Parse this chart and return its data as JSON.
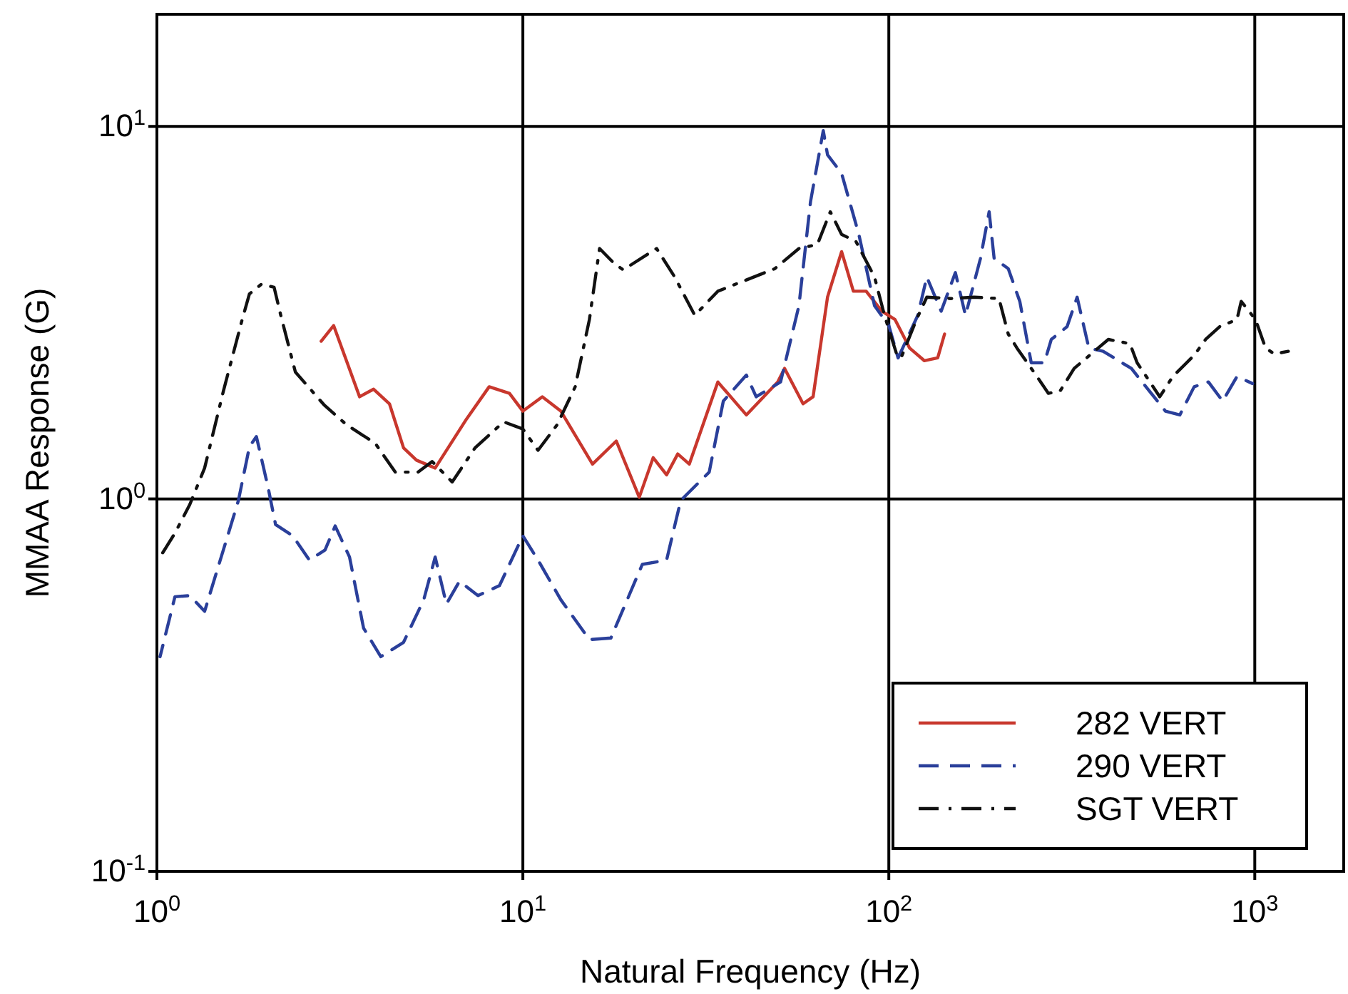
{
  "chart_data": {
    "type": "line",
    "xlabel": "Natural Frequency (Hz)",
    "ylabel": "MMAA Response (G)",
    "log": "xy",
    "grid": true,
    "legend": "bottom right",
    "xlim": [
      1,
      1750
    ],
    "ylim": [
      0.1,
      20
    ],
    "xticks": [
      {
        "value": 1,
        "label": "10$^{0}$"
      },
      {
        "value": 10,
        "label": "10$^{1}$"
      },
      {
        "value": 100,
        "label": "10$^{2}$"
      },
      {
        "value": 1000,
        "label": "10$^{3}$"
      }
    ],
    "yticks": [
      {
        "value": 0.1,
        "label": "10$^{-1}$"
      },
      {
        "value": 1,
        "label": "10$^{0}$"
      },
      {
        "value": 10,
        "label": "10$^{1}$"
      }
    ],
    "series": [
      {
        "name": "282 VERT",
        "color": "#c8372d",
        "line_style": "solid",
        "x": [
          2.81,
          3.04,
          3.58,
          3.91,
          4.32,
          4.72,
          5.12,
          5.76,
          7.02,
          8.09,
          9.19,
          10.0,
          11.3,
          12.7,
          15.5,
          18.0,
          20.8,
          22.7,
          24.7,
          26.5,
          28.5,
          34.1,
          40.8,
          49.7,
          51.9,
          58.3,
          62.1,
          68.0,
          74.3,
          80.0,
          86.7,
          95.7,
          104,
          114,
          125,
          136,
          142
        ],
        "values": [
          2.65,
          2.92,
          1.88,
          1.97,
          1.8,
          1.37,
          1.27,
          1.21,
          1.64,
          2.0,
          1.92,
          1.72,
          1.88,
          1.72,
          1.24,
          1.43,
          1.01,
          1.29,
          1.16,
          1.32,
          1.24,
          2.06,
          1.68,
          2.06,
          2.24,
          1.8,
          1.88,
          3.48,
          4.61,
          3.61,
          3.61,
          3.19,
          3.03,
          2.54,
          2.35,
          2.39,
          2.77
        ]
      },
      {
        "name": "290 VERT",
        "color": "#2a3f9a",
        "line_style": "dashed",
        "x": [
          1.02,
          1.12,
          1.23,
          1.35,
          1.54,
          1.67,
          1.79,
          1.87,
          2.01,
          2.11,
          2.35,
          2.61,
          2.88,
          3.07,
          3.36,
          3.67,
          4.09,
          4.72,
          5.36,
          5.76,
          6.18,
          6.71,
          7.54,
          8.63,
          10.0,
          11.0,
          12.7,
          15.2,
          17.4,
          21.2,
          24.7,
          27.0,
          32.3,
          35.3,
          40.8,
          43.4,
          50.6,
          56.8,
          61.1,
          66.2,
          68.0,
          74.3,
          82.8,
          91.4,
          100,
          106,
          120,
          127,
          139,
          152,
          162,
          178,
          188,
          194,
          212,
          228,
          245,
          266,
          278,
          307,
          327,
          352,
          385,
          460,
          570,
          624,
          683,
          747,
          817,
          894,
          986
        ],
        "values": [
          0.377,
          0.546,
          0.55,
          0.499,
          0.762,
          0.99,
          1.38,
          1.47,
          1.08,
          0.853,
          0.796,
          0.685,
          0.729,
          0.846,
          0.698,
          0.45,
          0.377,
          0.412,
          0.536,
          0.698,
          0.522,
          0.601,
          0.55,
          0.585,
          0.796,
          0.685,
          0.536,
          0.419,
          0.423,
          0.667,
          0.685,
          0.99,
          1.18,
          1.83,
          2.15,
          1.88,
          2.06,
          3.3,
          6.28,
          9.74,
          8.39,
          7.48,
          5.13,
          3.3,
          2.92,
          2.39,
          3.11,
          3.94,
          3.19,
          4.05,
          3.11,
          4.42,
          5.9,
          4.42,
          4.15,
          3.39,
          2.32,
          2.32,
          2.68,
          2.9,
          3.48,
          2.54,
          2.49,
          2.24,
          1.72,
          1.68,
          2.0,
          2.06,
          1.83,
          2.13,
          2.04
        ]
      },
      {
        "name": "SGT VERT",
        "color": "#111111",
        "line_style": "dashdot",
        "x": [
          1.02,
          1.12,
          1.23,
          1.35,
          1.52,
          1.71,
          1.79,
          1.93,
          2.09,
          2.18,
          2.39,
          2.86,
          3.3,
          3.95,
          4.48,
          5.17,
          5.65,
          6.41,
          7.4,
          8.86,
          10.0,
          11.0,
          12.4,
          13.9,
          15.2,
          16.2,
          17.7,
          18.8,
          23.2,
          26.0,
          29.5,
          34.1,
          40.8,
          48.8,
          56.8,
          63.8,
          69.2,
          74.3,
          81.3,
          91.4,
          97.3,
          105,
          108,
          119,
          127,
          148,
          171,
          200,
          212,
          224,
          254,
          273,
          294,
          321,
          398,
          456,
          477,
          550,
          597,
          683,
          734,
          802,
          894,
          918,
          1005,
          1070,
          1130,
          1235
        ],
        "values": [
          0.698,
          0.809,
          0.966,
          1.21,
          1.95,
          3.03,
          3.55,
          3.77,
          3.7,
          3.11,
          2.19,
          1.79,
          1.58,
          1.41,
          1.18,
          1.18,
          1.26,
          1.11,
          1.37,
          1.61,
          1.54,
          1.35,
          1.58,
          2.0,
          3.03,
          4.7,
          4.3,
          4.12,
          4.7,
          3.94,
          3.11,
          3.61,
          3.87,
          4.15,
          4.7,
          4.82,
          5.9,
          5.13,
          4.91,
          3.94,
          3.11,
          2.45,
          2.39,
          3.03,
          3.48,
          3.45,
          3.48,
          3.45,
          2.77,
          2.54,
          2.13,
          1.92,
          1.95,
          2.24,
          2.68,
          2.61,
          2.32,
          1.88,
          2.13,
          2.43,
          2.68,
          2.9,
          3.03,
          3.39,
          3.03,
          2.54,
          2.45,
          2.49
        ]
      }
    ]
  }
}
